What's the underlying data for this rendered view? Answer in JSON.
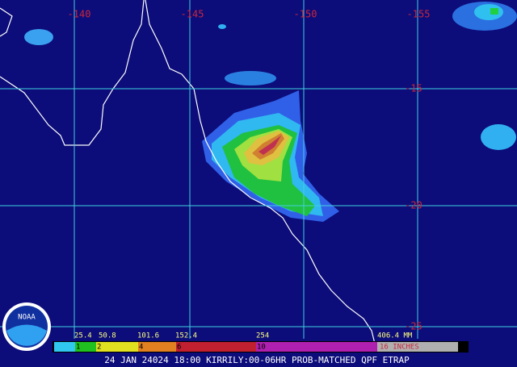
{
  "map": {
    "lon_labels": [
      "-140",
      "-145",
      "-150",
      "-155"
    ],
    "lat_labels": [
      "-15",
      "-20",
      "-25"
    ]
  },
  "legend": {
    "mm_labels": [
      "25.4",
      "50.8",
      "101.6",
      "152.4",
      "254",
      "406.4 MM"
    ],
    "inch_labels": [
      "1",
      "2",
      "4",
      "6",
      "10",
      "16 INCHES"
    ]
  },
  "logo": "NOAA",
  "footer": "24 JAN 24024 18:00 KIRRILY:00-06HR PROB-MATCHED QPF ETRAP"
}
